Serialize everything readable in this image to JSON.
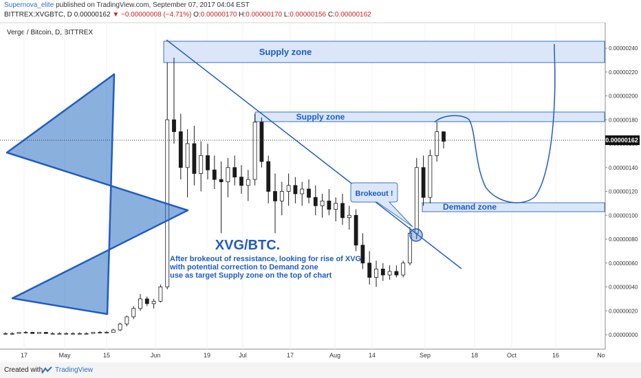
{
  "header": {
    "author": "Supernova_elite",
    "published_text": "published on TradingView.com, September 07, 2017 04:04 EST",
    "symbol_line": "BITTREX:XVGBTC, D",
    "last": "0.00000162",
    "change": "▼ −0.00000008 (−4.71%)",
    "o_label": "O:",
    "o_value": "0.00000170",
    "h_label": "H:",
    "h_value": "0.00000170",
    "l_label": "L:",
    "l_value": "0.00000156",
    "c_label": "C:",
    "c_value": "0.00000162"
  },
  "chart_title": "Verge / Bitcoin, D, BITTREX",
  "chart_data": {
    "type": "candlestick",
    "symbol": "XVGBTC",
    "timeframe": "D",
    "x_ticks": [
      "17",
      "May",
      "15",
      "Jun",
      "19",
      "Jul",
      "17",
      "Aug",
      "14",
      "Sep",
      "18",
      "Oct",
      "16",
      "No"
    ],
    "y_ticks": [
      "0.00000240",
      "0.00000220",
      "0.00000200",
      "0.00000180",
      "0.00000160",
      "0.00000140",
      "0.00000120",
      "0.00000100",
      "0.00000080",
      "0.00000060",
      "0.00000040",
      "0.00000020",
      "0.00000000"
    ],
    "ylim": [
      -1e-07,
      2.6e-06
    ],
    "last_price_label": "0.00000162",
    "candles": [
      {
        "t": 0,
        "o": 1e-08,
        "h": 2e-08,
        "l": 0.0,
        "c": 1e-08
      },
      {
        "t": 10,
        "o": 1e-08,
        "h": 2e-08,
        "l": 0.0,
        "c": 1e-08
      },
      {
        "t": 20,
        "o": 1e-08,
        "h": 2e-08,
        "l": 1e-08,
        "c": 2e-08
      },
      {
        "t": 30,
        "o": 2e-08,
        "h": 3e-08,
        "l": 1e-08,
        "c": 2e-08
      },
      {
        "t": 40,
        "o": 2e-08,
        "h": 2e-08,
        "l": 1e-08,
        "c": 1e-08
      },
      {
        "t": 50,
        "o": 1e-08,
        "h": 2e-08,
        "l": 1e-08,
        "c": 2e-08
      },
      {
        "t": 60,
        "o": 2e-08,
        "h": 2e-08,
        "l": 1e-08,
        "c": 1e-08
      },
      {
        "t": 70,
        "o": 1e-08,
        "h": 2e-08,
        "l": 1e-08,
        "c": 1e-08
      },
      {
        "t": 80,
        "o": 1e-08,
        "h": 2e-08,
        "l": 1e-08,
        "c": 1e-08
      },
      {
        "t": 90,
        "o": 1e-08,
        "h": 2e-08,
        "l": 1e-08,
        "c": 1e-08
      },
      {
        "t": 100,
        "o": 1e-08,
        "h": 2e-08,
        "l": 1e-08,
        "c": 1e-08
      },
      {
        "t": 110,
        "o": 1e-08,
        "h": 2e-08,
        "l": 1e-08,
        "c": 1e-08
      },
      {
        "t": 120,
        "o": 1e-08,
        "h": 2e-08,
        "l": 1e-08,
        "c": 1e-08
      },
      {
        "t": 130,
        "o": 1e-08,
        "h": 2e-08,
        "l": 1e-08,
        "c": 2e-08
      },
      {
        "t": 140,
        "o": 2e-08,
        "h": 3e-08,
        "l": 1e-08,
        "c": 2e-08
      },
      {
        "t": 150,
        "o": 2e-08,
        "h": 3e-08,
        "l": 1e-08,
        "c": 2e-08
      },
      {
        "t": 160,
        "o": 2e-08,
        "h": 5e-08,
        "l": 2e-08,
        "c": 4e-08
      },
      {
        "t": 170,
        "o": 4e-08,
        "h": 1e-07,
        "l": 3e-08,
        "c": 9e-08
      },
      {
        "t": 180,
        "o": 9e-08,
        "h": 1.6e-07,
        "l": 7e-08,
        "c": 1.5e-07
      },
      {
        "t": 190,
        "o": 1.5e-07,
        "h": 2.4e-07,
        "l": 1.3e-07,
        "c": 2.2e-07
      },
      {
        "t": 200,
        "o": 2.2e-07,
        "h": 3.4e-07,
        "l": 2e-07,
        "c": 3e-07
      },
      {
        "t": 210,
        "o": 3e-07,
        "h": 3.2e-07,
        "l": 2.4e-07,
        "c": 2.6e-07
      },
      {
        "t": 220,
        "o": 2.6e-07,
        "h": 3e-07,
        "l": 2.2e-07,
        "c": 2.8e-07
      },
      {
        "t": 230,
        "o": 2.8e-07,
        "h": 4.2e-07,
        "l": 2.7e-07,
        "c": 4e-07
      },
      {
        "t": 240,
        "o": 4e-07,
        "h": 2.28e-06,
        "l": 3.8e-07,
        "c": 1.8e-06
      },
      {
        "t": 250,
        "o": 1.8e-06,
        "h": 2.32e-06,
        "l": 1.6e-06,
        "c": 1.7e-06
      },
      {
        "t": 260,
        "o": 1.7e-06,
        "h": 1.85e-06,
        "l": 1.3e-06,
        "c": 1.4e-06
      },
      {
        "t": 270,
        "o": 1.4e-06,
        "h": 1.72e-06,
        "l": 1.15e-06,
        "c": 1.6e-06
      },
      {
        "t": 280,
        "o": 1.6e-06,
        "h": 1.75e-06,
        "l": 1.25e-06,
        "c": 1.35e-06
      },
      {
        "t": 290,
        "o": 1.35e-06,
        "h": 1.62e-06,
        "l": 1.2e-06,
        "c": 1.5e-06
      },
      {
        "t": 300,
        "o": 1.5e-06,
        "h": 1.6e-06,
        "l": 1.3e-06,
        "c": 1.38e-06
      },
      {
        "t": 310,
        "o": 1.38e-06,
        "h": 1.5e-06,
        "l": 1.22e-06,
        "c": 1.3e-06
      },
      {
        "t": 320,
        "o": 1.3e-06,
        "h": 1.45e-06,
        "l": 8.5e-07,
        "c": 1.28e-06
      },
      {
        "t": 330,
        "o": 1.28e-06,
        "h": 1.48e-06,
        "l": 1.15e-06,
        "c": 1.4e-06
      },
      {
        "t": 340,
        "o": 1.4e-06,
        "h": 1.5e-06,
        "l": 1.25e-06,
        "c": 1.32e-06
      },
      {
        "t": 350,
        "o": 1.32e-06,
        "h": 1.42e-06,
        "l": 1.18e-06,
        "c": 1.25e-06
      },
      {
        "t": 360,
        "o": 1.25e-06,
        "h": 1.38e-06,
        "l": 1.12e-06,
        "c": 1.3e-06
      },
      {
        "t": 370,
        "o": 1.3e-06,
        "h": 1.85e-06,
        "l": 1.25e-06,
        "c": 1.78e-06
      },
      {
        "t": 380,
        "o": 1.78e-06,
        "h": 1.82e-06,
        "l": 1.4e-06,
        "c": 1.45e-06
      },
      {
        "t": 390,
        "o": 1.45e-06,
        "h": 1.5e-06,
        "l": 1.1e-06,
        "c": 1.2e-06
      },
      {
        "t": 400,
        "o": 1.2e-06,
        "h": 1.35e-06,
        "l": 8.5e-07,
        "c": 1.12e-06
      },
      {
        "t": 410,
        "o": 1.12e-06,
        "h": 1.28e-06,
        "l": 1e-06,
        "c": 1.2e-06
      },
      {
        "t": 420,
        "o": 1.2e-06,
        "h": 1.35e-06,
        "l": 1.08e-06,
        "c": 1.25e-06
      },
      {
        "t": 430,
        "o": 1.25e-06,
        "h": 1.32e-06,
        "l": 1.1e-06,
        "c": 1.18e-06
      },
      {
        "t": 440,
        "o": 1.18e-06,
        "h": 1.28e-06,
        "l": 1.08e-06,
        "c": 1.22e-06
      },
      {
        "t": 450,
        "o": 1.22e-06,
        "h": 1.3e-06,
        "l": 1.1e-06,
        "c": 1.15e-06
      },
      {
        "t": 460,
        "o": 1.15e-06,
        "h": 1.25e-06,
        "l": 1e-06,
        "c": 1.08e-06
      },
      {
        "t": 470,
        "o": 1.08e-06,
        "h": 1.18e-06,
        "l": 9.8e-07,
        "c": 1.12e-06
      },
      {
        "t": 480,
        "o": 1.12e-06,
        "h": 1.22e-06,
        "l": 1e-06,
        "c": 1.05e-06
      },
      {
        "t": 490,
        "o": 1.05e-06,
        "h": 1.15e-06,
        "l": 9.5e-07,
        "c": 1.1e-06
      },
      {
        "t": 500,
        "o": 1.1e-06,
        "h": 1.18e-06,
        "l": 9.2e-07,
        "c": 9.8e-07
      },
      {
        "t": 510,
        "o": 9.8e-07,
        "h": 1.08e-06,
        "l": 8.8e-07,
        "c": 1e-06
      },
      {
        "t": 520,
        "o": 1e-06,
        "h": 1.05e-06,
        "l": 7e-07,
        "c": 7.5e-07
      },
      {
        "t": 530,
        "o": 7.5e-07,
        "h": 8.5e-07,
        "l": 5.5e-07,
        "c": 6e-07
      },
      {
        "t": 540,
        "o": 6e-07,
        "h": 7e-07,
        "l": 4.2e-07,
        "c": 4.8e-07
      },
      {
        "t": 550,
        "o": 4.8e-07,
        "h": 6.2e-07,
        "l": 4e-07,
        "c": 5.5e-07
      },
      {
        "t": 560,
        "o": 5.5e-07,
        "h": 6e-07,
        "l": 4.5e-07,
        "c": 5e-07
      },
      {
        "t": 570,
        "o": 5e-07,
        "h": 5.8e-07,
        "l": 4.6e-07,
        "c": 5.3e-07
      },
      {
        "t": 580,
        "o": 5.3e-07,
        "h": 5.8e-07,
        "l": 4.8e-07,
        "c": 5e-07
      },
      {
        "t": 590,
        "o": 5e-07,
        "h": 6.2e-07,
        "l": 4.8e-07,
        "c": 6e-07
      },
      {
        "t": 600,
        "o": 6e-07,
        "h": 9e-07,
        "l": 5.8e-07,
        "c": 8.5e-07
      },
      {
        "t": 610,
        "o": 8.5e-07,
        "h": 1.48e-06,
        "l": 8e-07,
        "c": 1.4e-06
      },
      {
        "t": 620,
        "o": 1.4e-06,
        "h": 1.5e-06,
        "l": 1.08e-06,
        "c": 1.15e-06
      },
      {
        "t": 630,
        "o": 1.15e-06,
        "h": 1.55e-06,
        "l": 1.1e-06,
        "c": 1.5e-06
      },
      {
        "t": 640,
        "o": 1.5e-06,
        "h": 1.78e-06,
        "l": 1.45e-06,
        "c": 1.7e-06
      },
      {
        "t": 650,
        "o": 1.7e-06,
        "h": 1.7e-06,
        "l": 1.56e-06,
        "c": 1.62e-06
      }
    ]
  },
  "annotations": {
    "supply_zone_top": "Supply zone",
    "supply_zone_mid": "Supply zone",
    "demand_zone": "Demand zone",
    "brokeout": "Brokeout !",
    "big_title": "XVG/BTC.",
    "note_line1": "After brokeout of ressistance, looking for rise of XVG",
    "note_line2": "with potential correction to Demand zone",
    "note_line3": "use as target Supply zone on the top of chart"
  },
  "footer": {
    "created_with": "Created with",
    "brand": "TradingView"
  },
  "colors": {
    "accent": "#2a6fc2",
    "zone_fill": "#dbe7f8",
    "zone_stroke": "#3a72c8",
    "candle": "#1a1a1a",
    "drawing": "#1e5bc6"
  }
}
